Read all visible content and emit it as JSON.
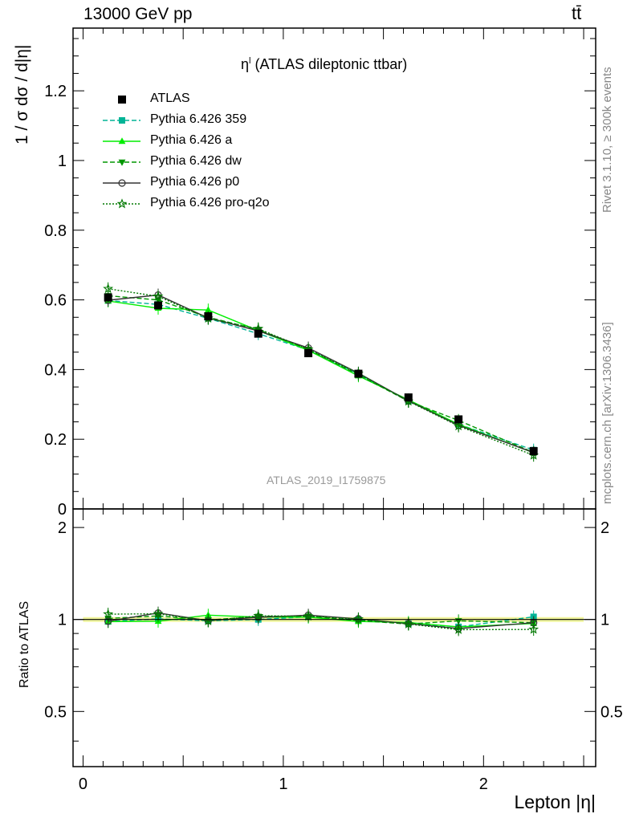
{
  "header": {
    "left": "13000 GeV pp",
    "right": "tt̄"
  },
  "side_text": {
    "rivet": "Rivet 3.1.10, ≥ 300k events",
    "mcplots": "mcplots.cern.ch [arXiv:1306.3436]"
  },
  "chart_data": {
    "type": "line",
    "title": "η",
    "title_sup": "l",
    "title_rest": " (ATLAS dileptonic ttbar)",
    "analysis_id": "ATLAS_2019_I1759875",
    "xlabel": "Lepton |η|",
    "ylabel": "1 / σ  dσ / d|η|",
    "ratio_ylabel": "Ratio to ATLAS",
    "xlim": [
      -0.05,
      2.56
    ],
    "ylim": [
      0,
      1.38
    ],
    "ratio_ylim": [
      0.33,
      2.3
    ],
    "x_ticks": [
      "0",
      "1",
      "2"
    ],
    "y_ticks": [
      "0",
      "0.2",
      "0.4",
      "0.6",
      "0.8",
      "1",
      "1.2"
    ],
    "ratio_ticks": [
      "0.5",
      "1",
      "2"
    ],
    "x": [
      0.125,
      0.375,
      0.625,
      0.875,
      1.125,
      1.375,
      1.625,
      1.875,
      2.25
    ],
    "data": {
      "name": "ATLAS",
      "values": [
        0.607,
        0.584,
        0.553,
        0.503,
        0.447,
        0.388,
        0.32,
        0.257,
        0.166
      ],
      "errors": [
        0.012,
        0.011,
        0.01,
        0.009,
        0.008,
        0.007,
        0.006,
        0.005,
        0.004
      ]
    },
    "series": [
      {
        "name": "Pythia 6.426 359",
        "color": "#00b496",
        "dash": "6,3",
        "marker": "square",
        "values": [
          0.598,
          0.587,
          0.547,
          0.503,
          0.456,
          0.387,
          0.31,
          0.243,
          0.169
        ],
        "ratio": [
          0.985,
          1.005,
          0.99,
          1.0,
          1.02,
          0.997,
          0.97,
          0.946,
          1.02
        ]
      },
      {
        "name": "Pythia 6.426 a",
        "color": "#00ee00",
        "dash": "",
        "marker": "triangle-up",
        "values": [
          0.597,
          0.576,
          0.571,
          0.512,
          0.455,
          0.382,
          0.313,
          0.243,
          0.161
        ],
        "ratio": [
          0.984,
          0.987,
          1.033,
          1.018,
          1.018,
          0.985,
          0.978,
          0.946,
          0.97
        ]
      },
      {
        "name": "Pythia 6.426 dw",
        "color": "#009600",
        "dash": "6,3",
        "marker": "triangle-down",
        "values": [
          0.612,
          0.6,
          0.55,
          0.515,
          0.458,
          0.385,
          0.309,
          0.254,
          0.162
        ],
        "ratio": [
          1.008,
          1.027,
          0.995,
          1.024,
          1.025,
          0.992,
          0.966,
          0.99,
          0.976
        ]
      },
      {
        "name": "Pythia 6.426 p0",
        "color": "#333333",
        "dash": "",
        "marker": "circle",
        "values": [
          0.599,
          0.614,
          0.548,
          0.511,
          0.462,
          0.39,
          0.31,
          0.24,
          0.162
        ],
        "ratio": [
          0.987,
          1.05,
          0.991,
          1.016,
          1.033,
          1.005,
          0.969,
          0.934,
          0.976
        ]
      },
      {
        "name": "Pythia 6.426 pro-q2o",
        "color": "#007800",
        "dash": "2,2",
        "marker": "star",
        "values": [
          0.632,
          0.61,
          0.547,
          0.517,
          0.458,
          0.389,
          0.309,
          0.238,
          0.154
        ],
        "ratio": [
          1.041,
          1.044,
          0.989,
          1.028,
          1.025,
          1.003,
          0.966,
          0.926,
          0.928
        ]
      }
    ]
  }
}
